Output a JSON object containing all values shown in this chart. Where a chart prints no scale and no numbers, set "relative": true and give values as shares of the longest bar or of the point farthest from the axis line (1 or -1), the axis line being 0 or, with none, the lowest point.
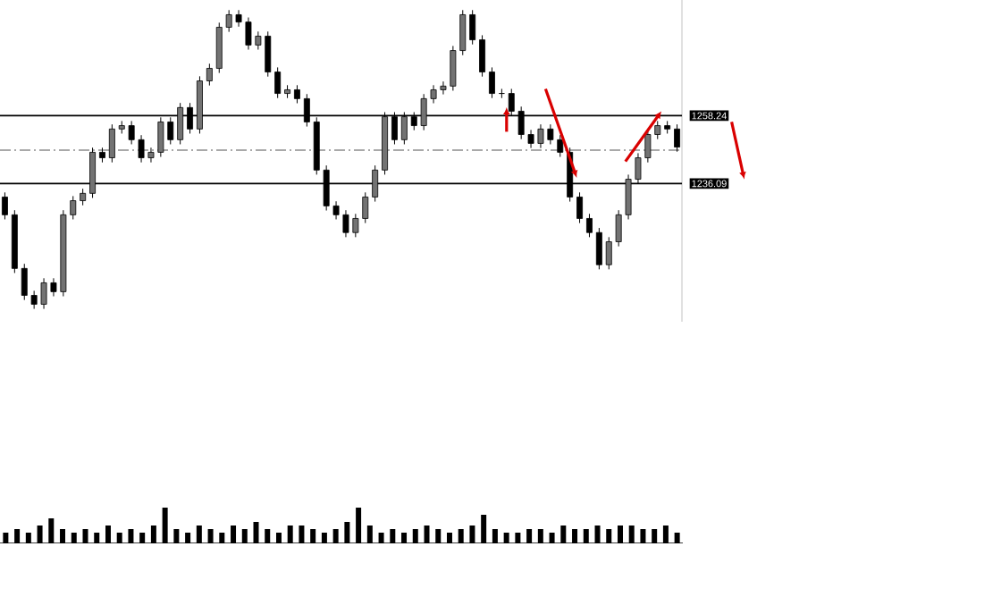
{
  "chart_data": [
    {
      "type": "candlestick",
      "color": "#000000",
      "tick_labels": "y",
      "ylim": [
        1191,
        1296
      ],
      "yticks": [
        1258.24,
        1236.09
      ],
      "categories": [
        null,
        null,
        null,
        null,
        null,
        null,
        null,
        null,
        null,
        null,
        null,
        null,
        null,
        null,
        null,
        null,
        null,
        null,
        null,
        null,
        null,
        null,
        null,
        null,
        null,
        null,
        null,
        null,
        null,
        null,
        null,
        null,
        null,
        null,
        null,
        null,
        null,
        null,
        null,
        null,
        null,
        null,
        null,
        null,
        null,
        null,
        null,
        null,
        null,
        null,
        null,
        null,
        null,
        null,
        null,
        null,
        null,
        null,
        null,
        null,
        null,
        null,
        null,
        null,
        null,
        null,
        null,
        null,
        null,
        null
      ],
      "ohlc": [
        [
          1231.7,
          1233.2,
          1224.4,
          1225.9
        ],
        [
          1225.9,
          1227.4,
          1206.9,
          1208.4
        ],
        [
          1208.4,
          1209.9,
          1198.1,
          1199.6
        ],
        [
          1199.6,
          1201.1,
          1195.2,
          1196.7
        ],
        [
          1196.7,
          1205.2,
          1195.2,
          1203.7
        ],
        [
          1203.7,
          1205.2,
          1199.3,
          1200.8
        ],
        [
          1200.8,
          1227.4,
          1199.3,
          1225.9
        ],
        [
          1225.9,
          1232.0,
          1224.4,
          1230.5
        ],
        [
          1230.5,
          1234.4,
          1229.0,
          1232.9
        ],
        [
          1232.9,
          1247.8,
          1231.4,
          1246.3
        ],
        [
          1246.3,
          1247.8,
          1243.0,
          1244.5
        ],
        [
          1244.5,
          1255.4,
          1243.0,
          1253.9
        ],
        [
          1253.9,
          1256.5,
          1252.4,
          1255.0
        ],
        [
          1255.0,
          1256.5,
          1248.9,
          1250.4
        ],
        [
          1250.4,
          1251.9,
          1243.0,
          1244.5
        ],
        [
          1244.5,
          1247.8,
          1243.0,
          1246.3
        ],
        [
          1246.3,
          1257.7,
          1244.8,
          1256.2
        ],
        [
          1256.2,
          1257.7,
          1248.9,
          1250.4
        ],
        [
          1250.4,
          1262.4,
          1248.9,
          1260.9
        ],
        [
          1260.9,
          1262.4,
          1252.4,
          1253.9
        ],
        [
          1253.9,
          1271.1,
          1252.4,
          1269.6
        ],
        [
          1269.6,
          1275.2,
          1268.1,
          1273.7
        ],
        [
          1273.7,
          1288.6,
          1272.2,
          1287.1
        ],
        [
          1287.1,
          1292.7,
          1285.6,
          1291.2
        ],
        [
          1291.2,
          1292.7,
          1287.3,
          1288.8
        ],
        [
          1288.8,
          1290.3,
          1279.8,
          1281.3
        ],
        [
          1281.3,
          1285.7,
          1279.8,
          1284.2
        ],
        [
          1284.2,
          1285.7,
          1271.0,
          1272.5
        ],
        [
          1272.5,
          1274.0,
          1264.0,
          1265.5
        ],
        [
          1265.5,
          1268.2,
          1264.0,
          1266.7
        ],
        [
          1266.7,
          1268.2,
          1262.3,
          1263.8
        ],
        [
          1263.8,
          1265.3,
          1254.7,
          1256.2
        ],
        [
          1256.2,
          1257.7,
          1239.0,
          1240.5
        ],
        [
          1240.5,
          1242.0,
          1227.3,
          1228.8
        ],
        [
          1228.8,
          1230.3,
          1224.4,
          1225.9
        ],
        [
          1225.9,
          1227.4,
          1218.6,
          1220.1
        ],
        [
          1220.1,
          1226.2,
          1218.6,
          1224.7
        ],
        [
          1224.7,
          1233.2,
          1223.2,
          1231.7
        ],
        [
          1231.7,
          1242.0,
          1230.2,
          1240.5
        ],
        [
          1240.5,
          1259.4,
          1239.0,
          1257.9
        ],
        [
          1257.9,
          1259.4,
          1248.9,
          1250.4
        ],
        [
          1250.4,
          1259.4,
          1248.9,
          1257.9
        ],
        [
          1257.9,
          1259.4,
          1253.5,
          1255.0
        ],
        [
          1255.0,
          1265.3,
          1253.5,
          1263.8
        ],
        [
          1263.8,
          1268.2,
          1262.3,
          1266.7
        ],
        [
          1266.7,
          1269.4,
          1265.2,
          1267.9
        ],
        [
          1267.9,
          1281.0,
          1266.4,
          1279.5
        ],
        [
          1279.5,
          1292.7,
          1278.0,
          1291.2
        ],
        [
          1291.2,
          1292.7,
          1281.5,
          1283.0
        ],
        [
          1283.0,
          1284.5,
          1271.0,
          1272.5
        ],
        [
          1272.5,
          1274.0,
          1264.0,
          1265.5
        ],
        [
          1265.5,
          1267.0,
          1264.0,
          1265.5
        ],
        [
          1265.5,
          1267.0,
          1258.2,
          1259.7
        ],
        [
          1259.7,
          1261.2,
          1250.6,
          1252.1
        ],
        [
          1252.1,
          1253.6,
          1247.7,
          1249.2
        ],
        [
          1249.2,
          1255.4,
          1247.7,
          1253.9
        ],
        [
          1253.9,
          1255.4,
          1248.9,
          1250.4
        ],
        [
          1250.4,
          1251.9,
          1244.8,
          1246.3
        ],
        [
          1246.3,
          1247.8,
          1230.2,
          1231.7
        ],
        [
          1231.7,
          1233.2,
          1223.2,
          1224.7
        ],
        [
          1224.7,
          1226.2,
          1218.6,
          1220.1
        ],
        [
          1220.1,
          1221.6,
          1208.1,
          1209.6
        ],
        [
          1209.6,
          1218.6,
          1208.1,
          1217.1
        ],
        [
          1217.1,
          1227.4,
          1215.6,
          1225.9
        ],
        [
          1225.9,
          1239.0,
          1224.4,
          1237.5
        ],
        [
          1237.5,
          1246.0,
          1236.0,
          1244.5
        ],
        [
          1244.5,
          1253.6,
          1243.0,
          1252.1
        ],
        [
          1252.1,
          1256.5,
          1250.6,
          1255.0
        ],
        [
          1255.0,
          1256.5,
          1252.4,
          1253.9
        ],
        [
          1253.9,
          1255.4,
          1246.5,
          1248.0
        ]
      ],
      "ref_lines": [
        {
          "axis": "y",
          "value": 1258.24,
          "color": "#000000",
          "line_style": "solid"
        },
        {
          "axis": "y",
          "value": 1236.09,
          "color": "#000000",
          "line_style": "solid"
        },
        {
          "axis": "y",
          "value": 1247,
          "color": "#555555",
          "line_style": "dashdot"
        }
      ]
    },
    {
      "type": "bar",
      "relative": true,
      "color": "#000000",
      "categories": [
        null,
        null,
        null,
        null,
        null,
        null,
        null,
        null,
        null,
        null,
        null,
        null,
        null,
        null,
        null,
        null,
        null,
        null,
        null,
        null,
        null,
        null,
        null,
        null,
        null,
        null,
        null,
        null,
        null,
        null,
        null,
        null,
        null,
        null,
        null,
        null,
        null,
        null,
        null,
        null,
        null,
        null,
        null,
        null,
        null,
        null,
        null,
        null,
        null,
        null,
        null,
        null,
        null,
        null,
        null,
        null,
        null,
        null,
        null,
        null
      ],
      "values": [
        0.3,
        0.4,
        0.3,
        0.5,
        0.7,
        0.4,
        0.3,
        0.4,
        0.3,
        0.5,
        0.3,
        0.4,
        0.3,
        0.5,
        1.0,
        0.4,
        0.3,
        0.5,
        0.4,
        0.3,
        0.5,
        0.4,
        0.6,
        0.4,
        0.3,
        0.5,
        0.5,
        0.4,
        0.3,
        0.4,
        0.6,
        1.0,
        0.5,
        0.3,
        0.4,
        0.3,
        0.4,
        0.5,
        0.4,
        0.3,
        0.4,
        0.5,
        0.8,
        0.4,
        0.3,
        0.3,
        0.4,
        0.4,
        0.3,
        0.5,
        0.4,
        0.4,
        0.5,
        0.4,
        0.5,
        0.5,
        0.4,
        0.4,
        0.5,
        0.3
      ]
    }
  ]
}
